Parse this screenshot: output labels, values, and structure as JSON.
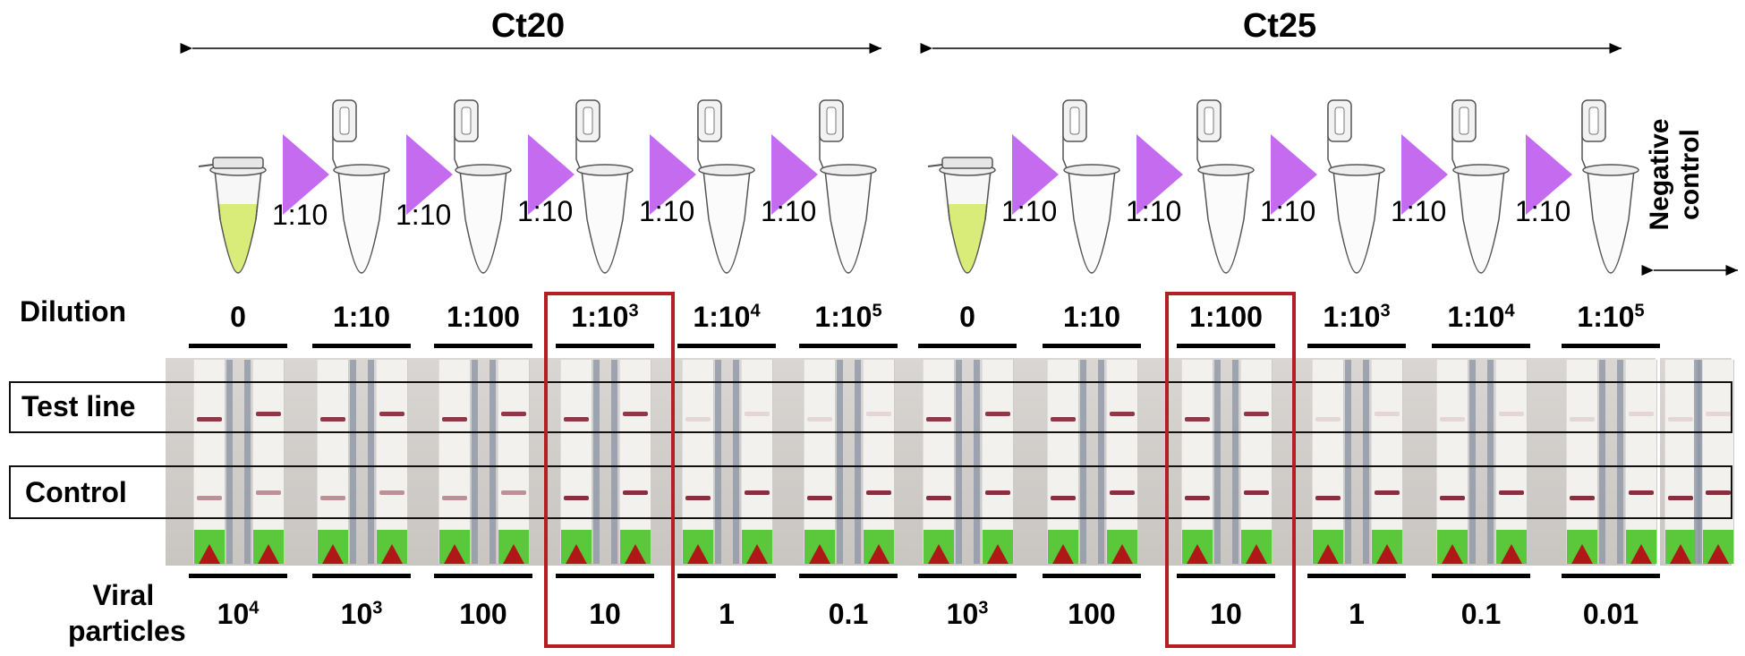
{
  "groups": [
    {
      "title": "Ct20"
    },
    {
      "title": "Ct25"
    }
  ],
  "step_label": "1:10",
  "dilution_label": "Dilution",
  "rows": {
    "test": "Test line",
    "control": "Control"
  },
  "viral_label": {
    "line1": "Viral",
    "line2": "particles"
  },
  "negative_control": {
    "line1": "Negative",
    "line2": "control"
  },
  "dilutions": [
    {
      "base": "0",
      "exp": ""
    },
    {
      "base": "1:10",
      "exp": ""
    },
    {
      "base": "1:100",
      "exp": ""
    },
    {
      "base": "1:10",
      "exp": "3"
    },
    {
      "base": "1:10",
      "exp": "4"
    },
    {
      "base": "1:10",
      "exp": "5"
    },
    {
      "base": "0",
      "exp": ""
    },
    {
      "base": "1:10",
      "exp": ""
    },
    {
      "base": "1:100",
      "exp": ""
    },
    {
      "base": "1:10",
      "exp": "3"
    },
    {
      "base": "1:10",
      "exp": "4"
    },
    {
      "base": "1:10",
      "exp": "5"
    }
  ],
  "viral_particles": [
    {
      "base": "10",
      "exp": "4"
    },
    {
      "base": "10",
      "exp": "3"
    },
    {
      "base": "100",
      "exp": ""
    },
    {
      "base": "10",
      "exp": ""
    },
    {
      "base": "1",
      "exp": ""
    },
    {
      "base": "0.1",
      "exp": ""
    },
    {
      "base": "10",
      "exp": "3"
    },
    {
      "base": "100",
      "exp": ""
    },
    {
      "base": "10",
      "exp": ""
    },
    {
      "base": "1",
      "exp": ""
    },
    {
      "base": "0.1",
      "exp": ""
    },
    {
      "base": "0.01",
      "exp": ""
    }
  ],
  "colors": {
    "highlight": "#b51f24",
    "arrow": "#c56bef",
    "liquid": "#d9ec7a",
    "band": "#7a1a2a",
    "pad": "#5ac83a"
  }
}
